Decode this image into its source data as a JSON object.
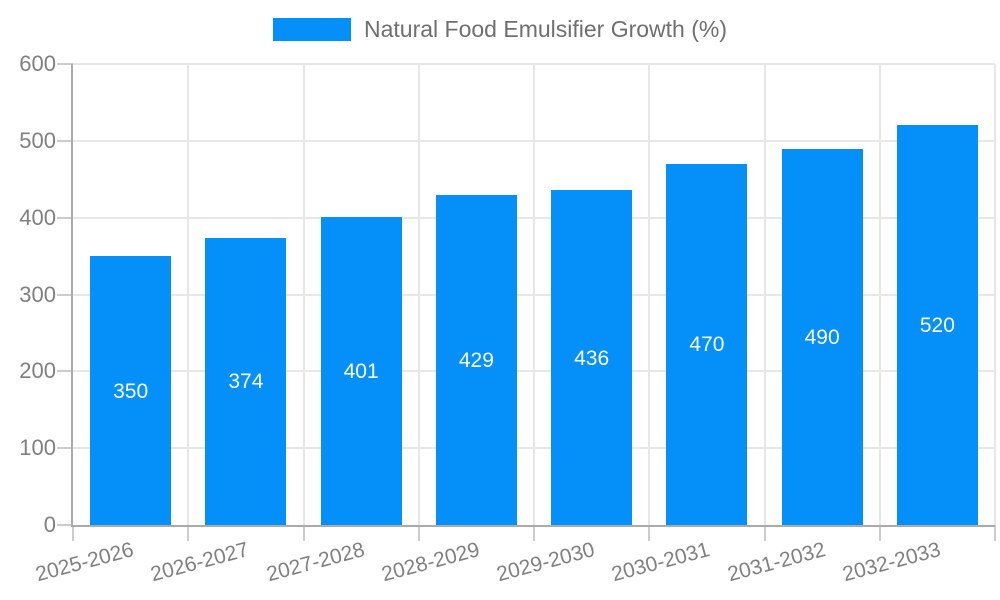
{
  "chart_data": {
    "type": "bar",
    "title": "",
    "legend": {
      "label": "Natural Food Emulsifier Growth (%)",
      "position": "top"
    },
    "categories": [
      "2025-2026",
      "2026-2027",
      "2027-2028",
      "2028-2029",
      "2029-2030",
      "2030-2031",
      "2031-2032",
      "2032-2033"
    ],
    "values": [
      350,
      374,
      401,
      429,
      436,
      470,
      490,
      520
    ],
    "xlabel": "",
    "ylabel": "",
    "ylim": [
      0,
      600
    ],
    "yticks": [
      0,
      100,
      200,
      300,
      400,
      500,
      600
    ],
    "grid": true,
    "value_labels_shown": true
  },
  "colors": {
    "bar": "#0590f9",
    "grid": "#e7e7e7",
    "axis": "#ababab",
    "tick": "#cccccc",
    "tick_label": "#808080",
    "legend_label": "#6f6f6f",
    "value_label": "#ffffff",
    "background": "#ffffff"
  }
}
